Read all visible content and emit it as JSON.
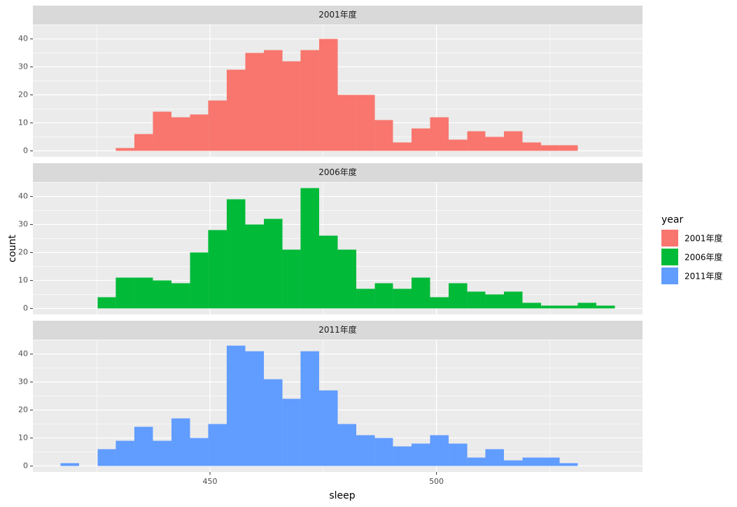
{
  "chart_data": {
    "type": "histogram",
    "x_label": "sleep",
    "y_label": "count",
    "legend_title": "year",
    "bins": [
      417.0,
      421.1,
      425.2,
      429.2,
      433.3,
      437.4,
      441.5,
      445.6,
      449.6,
      453.7,
      457.8,
      461.9,
      466.0,
      470.0,
      474.1,
      478.2,
      482.3,
      486.4,
      490.4,
      494.5,
      498.6,
      502.7,
      506.8,
      510.8,
      514.9,
      519.0,
      523.1,
      527.2,
      531.2,
      535.3,
      539.4
    ],
    "xlim": [
      410.9,
      545.5
    ],
    "xticks": [
      450,
      500
    ],
    "ylim": [
      -2.15,
      45.15
    ],
    "yticks": [
      0,
      10,
      20,
      30,
      40
    ],
    "grid": true,
    "facets": true,
    "legend_position": "right",
    "series": [
      {
        "name": "2001年度",
        "color": "#F8766D",
        "values": [
          0,
          0,
          0,
          1,
          6,
          14,
          12,
          13,
          18,
          29,
          35,
          36,
          32,
          36,
          40,
          20,
          20,
          11,
          3,
          8,
          12,
          4,
          7,
          5,
          7,
          3,
          2,
          2,
          0,
          0
        ]
      },
      {
        "name": "2006年度",
        "color": "#00BA38",
        "values": [
          0,
          0,
          4,
          11,
          11,
          10,
          9,
          20,
          28,
          39,
          30,
          32,
          21,
          43,
          26,
          21,
          7,
          9,
          7,
          11,
          4,
          9,
          6,
          5,
          6,
          2,
          1,
          1,
          2,
          1
        ]
      },
      {
        "name": "2011年度",
        "color": "#619CFF",
        "values": [
          1,
          0,
          6,
          9,
          14,
          9,
          17,
          10,
          15,
          43,
          41,
          31,
          24,
          41,
          27,
          15,
          11,
          10,
          7,
          8,
          11,
          8,
          3,
          6,
          2,
          3,
          3,
          1,
          0,
          0
        ]
      }
    ]
  }
}
